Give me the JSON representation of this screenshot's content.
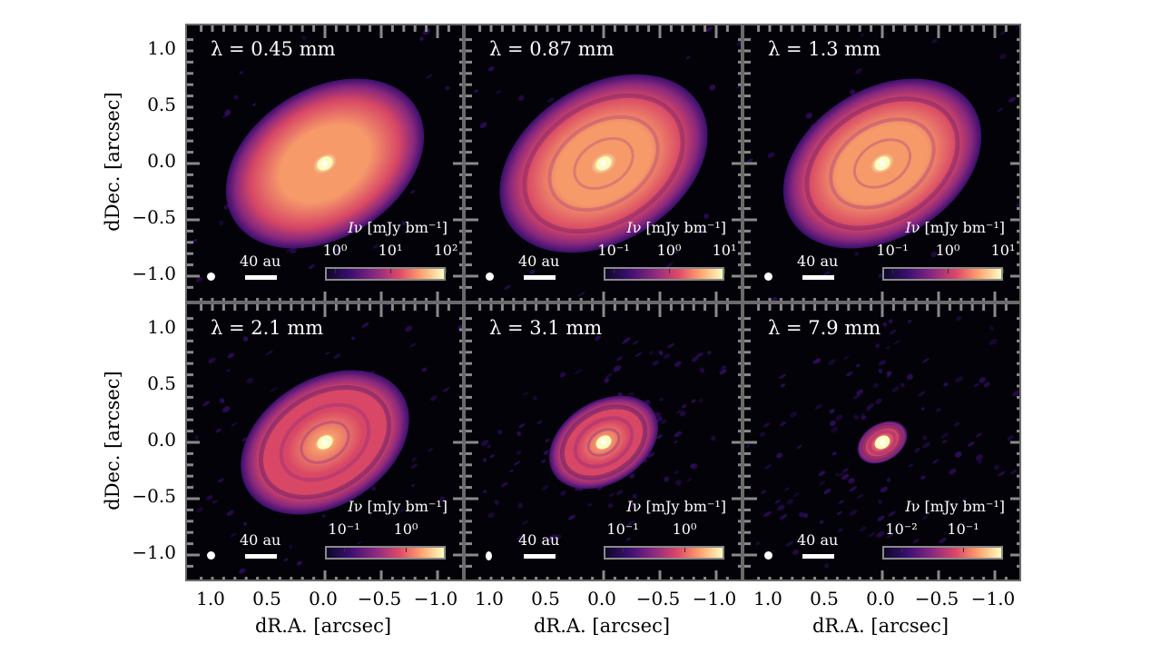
{
  "figure": {
    "y_axis_label": "dDec. [arcsec]",
    "x_axis_label": "dR.A. [arcsec]",
    "y_tick_labels": [
      "1.0",
      "0.5",
      "0.0",
      "−0.5",
      "−1.0"
    ],
    "x_tick_labels": [
      "1.0",
      "0.5",
      "0.0",
      "−0.5",
      "−1.0"
    ],
    "scale_bar_label": "40 au",
    "colormap": [
      "#0d0828",
      "#3b0f70",
      "#8c2981",
      "#de4968",
      "#fe9f6d",
      "#fcfdbf"
    ],
    "colorbar_unit_prefix": "I",
    "colorbar_unit_suffix": "ν [mJy bm⁻¹]"
  },
  "panels": [
    {
      "wavelength_label": "λ = 0.45 mm",
      "colorbar_ticks": [
        "10⁰",
        "10¹",
        "10²"
      ],
      "brightness": 1.0,
      "rings": 0.15,
      "noise": 0.2,
      "size": 1.0,
      "beam_elongated": false
    },
    {
      "wavelength_label": "λ = 0.87 mm",
      "colorbar_ticks": [
        "10⁻¹",
        "10⁰",
        "10¹"
      ],
      "brightness": 0.95,
      "rings": 0.6,
      "noise": 0.3,
      "size": 1.05,
      "beam_elongated": false
    },
    {
      "wavelength_label": "λ = 1.3 mm",
      "colorbar_ticks": [
        "10⁻¹",
        "10⁰",
        "10¹"
      ],
      "brightness": 0.9,
      "rings": 0.65,
      "noise": 0.3,
      "size": 1.0,
      "beam_elongated": false
    },
    {
      "wavelength_label": "λ = 2.1 mm",
      "colorbar_ticks": [
        "10⁻¹",
        "10⁰"
      ],
      "brightness": 0.75,
      "rings": 0.8,
      "noise": 0.55,
      "size": 0.85,
      "beam_elongated": false
    },
    {
      "wavelength_label": "λ = 3.1 mm",
      "colorbar_ticks": [
        "10⁻¹",
        "10⁰"
      ],
      "brightness": 0.55,
      "rings": 0.9,
      "noise": 0.8,
      "size": 0.55,
      "beam_elongated": true
    },
    {
      "wavelength_label": "λ = 7.9 mm",
      "colorbar_ticks": [
        "10⁻²",
        "10⁻¹"
      ],
      "brightness": 0.45,
      "rings": 0.8,
      "noise": 0.9,
      "size": 0.25,
      "beam_elongated": false
    }
  ]
}
